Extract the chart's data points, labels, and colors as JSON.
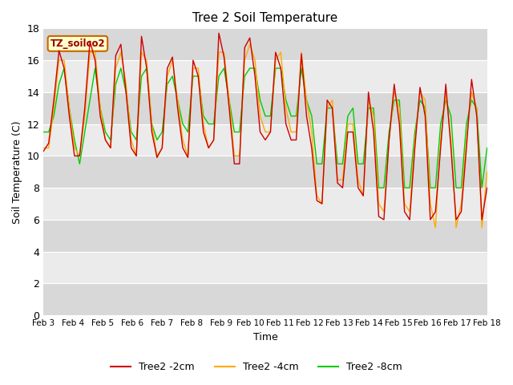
{
  "title": "Tree 2 Soil Temperature",
  "ylabel": "Soil Temperature (C)",
  "xlabel": "Time",
  "ylim": [
    0,
    18
  ],
  "yticks": [
    0,
    2,
    4,
    6,
    8,
    10,
    12,
    14,
    16,
    18
  ],
  "x_labels": [
    "Feb 3",
    "Feb 4",
    "Feb 5",
    "Feb 6",
    "Feb 7",
    "Feb 8",
    "Feb 9",
    "Feb 10",
    "Feb 11",
    "Feb 12",
    "Feb 13",
    "Feb 14",
    "Feb 15",
    "Feb 16",
    "Feb 17",
    "Feb 18"
  ],
  "label_box_text": "TZ_soilco2",
  "label_box_bg": "#ffffcc",
  "label_box_edge": "#cc6600",
  "line_colors": [
    "#cc0000",
    "#ffaa00",
    "#00cc00"
  ],
  "line_labels": [
    "Tree2 -2cm",
    "Tree2 -4cm",
    "Tree2 -8cm"
  ],
  "background_color": "#ffffff",
  "plot_bg_light": "#ebebeb",
  "plot_bg_dark": "#d8d8d8",
  "grid_line_color": "#ffffff",
  "data_2cm": [
    10.3,
    10.8,
    13.5,
    16.6,
    15.5,
    12.5,
    10.0,
    10.0,
    13.0,
    17.2,
    16.0,
    12.5,
    11.0,
    10.5,
    16.3,
    17.0,
    14.0,
    10.5,
    10.0,
    17.5,
    15.5,
    11.5,
    9.9,
    10.5,
    15.5,
    16.2,
    13.0,
    10.5,
    9.9,
    16.0,
    15.0,
    11.5,
    10.5,
    11.0,
    17.7,
    16.2,
    13.0,
    9.5,
    9.5,
    16.8,
    17.4,
    15.0,
    11.5,
    11.0,
    11.5,
    16.5,
    15.5,
    12.0,
    11.0,
    11.0,
    16.4,
    12.5,
    10.5,
    7.2,
    7.0,
    13.5,
    13.0,
    8.3,
    8.0,
    11.5,
    11.5,
    8.0,
    7.5,
    14.0,
    11.5,
    6.2,
    6.0,
    11.0,
    14.5,
    12.0,
    6.5,
    6.0,
    10.5,
    14.3,
    12.5,
    6.0,
    6.5,
    10.5,
    14.5,
    10.5,
    6.0,
    6.5,
    10.5,
    14.8,
    12.5,
    6.0,
    8.0
  ],
  "data_4cm": [
    10.5,
    10.5,
    13.0,
    16.0,
    16.0,
    13.0,
    10.5,
    10.0,
    12.5,
    16.5,
    16.5,
    13.0,
    11.0,
    10.5,
    15.5,
    16.5,
    14.5,
    11.0,
    10.0,
    16.5,
    16.0,
    12.0,
    10.0,
    10.5,
    15.0,
    16.0,
    13.5,
    11.0,
    10.0,
    15.5,
    15.5,
    12.0,
    10.5,
    11.0,
    16.5,
    16.5,
    13.5,
    10.0,
    10.0,
    16.0,
    17.0,
    16.0,
    12.5,
    11.5,
    11.5,
    16.0,
    16.5,
    13.0,
    11.5,
    11.5,
    16.5,
    13.5,
    11.5,
    7.5,
    7.0,
    13.0,
    13.5,
    8.5,
    8.5,
    12.0,
    12.0,
    8.5,
    7.5,
    13.5,
    12.5,
    7.0,
    6.5,
    11.0,
    14.0,
    13.0,
    7.0,
    6.5,
    11.0,
    14.0,
    13.5,
    7.0,
    5.5,
    11.0,
    14.0,
    11.0,
    5.5,
    7.0,
    11.0,
    14.0,
    13.0,
    5.5,
    9.0
  ],
  "data_8cm": [
    11.5,
    11.5,
    12.5,
    14.5,
    15.5,
    13.0,
    11.0,
    9.5,
    11.5,
    13.5,
    15.5,
    13.0,
    11.5,
    11.0,
    14.5,
    15.5,
    14.0,
    11.5,
    11.0,
    15.0,
    15.5,
    12.0,
    11.0,
    11.5,
    14.5,
    15.0,
    13.5,
    12.0,
    11.5,
    15.0,
    15.0,
    12.5,
    12.0,
    12.0,
    15.0,
    15.5,
    13.5,
    11.5,
    11.5,
    15.0,
    15.5,
    15.5,
    13.5,
    12.5,
    12.5,
    15.5,
    15.5,
    13.5,
    12.5,
    12.5,
    15.5,
    13.5,
    12.5,
    9.5,
    9.5,
    13.0,
    13.0,
    9.5,
    9.5,
    12.5,
    13.0,
    9.5,
    9.5,
    13.0,
    13.0,
    8.0,
    8.0,
    11.5,
    13.5,
    13.5,
    8.0,
    8.0,
    11.5,
    13.5,
    13.0,
    8.0,
    8.0,
    12.0,
    13.5,
    12.5,
    8.0,
    8.0,
    12.0,
    13.5,
    13.0,
    8.0,
    10.5
  ]
}
